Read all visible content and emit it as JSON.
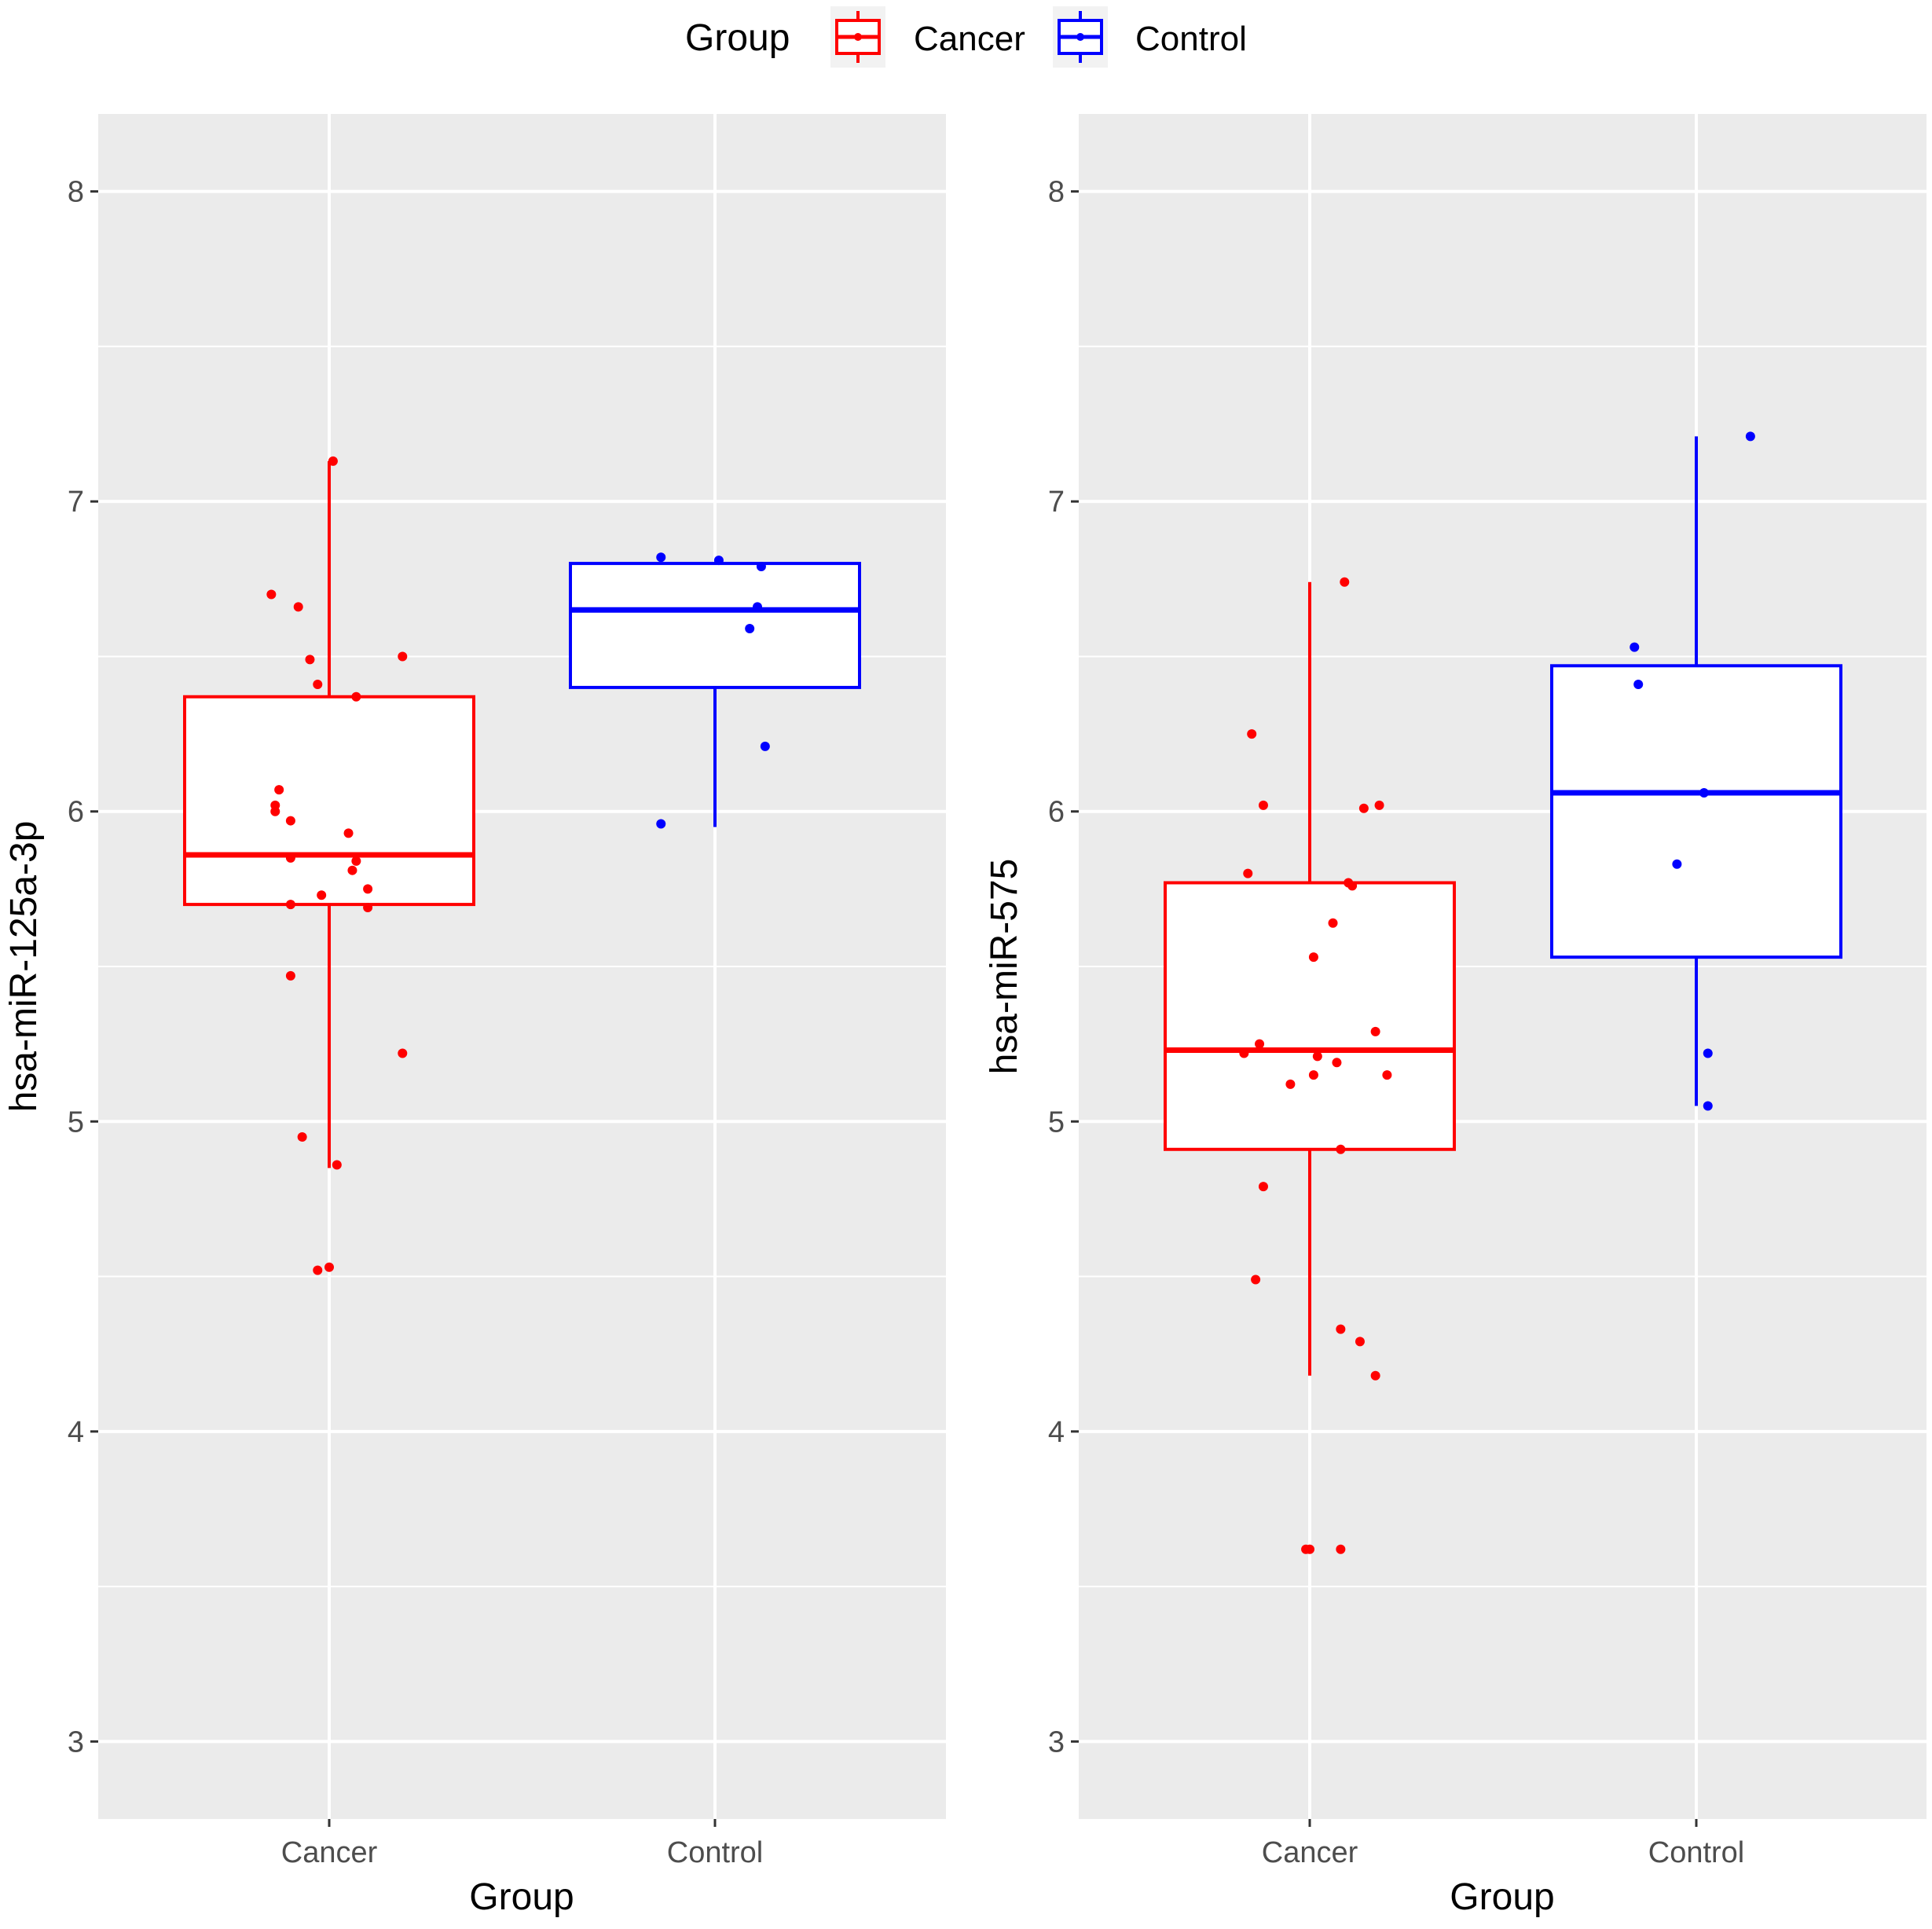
{
  "legend": {
    "title": "Group",
    "entries": [
      {
        "label": "Cancer",
        "color": "#ff0000"
      },
      {
        "label": "Control",
        "color": "#0000ff"
      }
    ]
  },
  "colors": {
    "panel_bg": "#ebebeb",
    "grid": "#ffffff",
    "cancer": "#ff0000",
    "control": "#0000ff",
    "tick_text": "#4d4d4d"
  },
  "chart_data": [
    {
      "type": "boxplot",
      "xlabel": "Group",
      "ylabel": "hsa-miR-125a-3p",
      "ylim": [
        2.75,
        8.25
      ],
      "yticks": [
        3,
        4,
        5,
        6,
        7,
        8
      ],
      "categories": [
        "Cancer",
        "Control"
      ],
      "boxes": [
        {
          "group": "Cancer",
          "whisker_low": 4.85,
          "q1": 5.7,
          "median": 5.86,
          "q3": 6.37,
          "whisker_high": 7.13,
          "points": [
            {
              "x": -0.15,
              "y": 6.7
            },
            {
              "x": -0.08,
              "y": 6.66
            },
            {
              "x": -0.05,
              "y": 6.49
            },
            {
              "x": -0.03,
              "y": 6.41
            },
            {
              "x": 0.07,
              "y": 6.37
            },
            {
              "x": 0.19,
              "y": 6.5
            },
            {
              "x": 0.01,
              "y": 7.13
            },
            {
              "x": -0.13,
              "y": 6.07
            },
            {
              "x": -0.14,
              "y": 6.02
            },
            {
              "x": -0.14,
              "y": 6.0
            },
            {
              "x": -0.1,
              "y": 5.97
            },
            {
              "x": 0.05,
              "y": 5.93
            },
            {
              "x": -0.1,
              "y": 5.85
            },
            {
              "x": 0.07,
              "y": 5.84
            },
            {
              "x": 0.06,
              "y": 5.81
            },
            {
              "x": 0.1,
              "y": 5.75
            },
            {
              "x": -0.02,
              "y": 5.73
            },
            {
              "x": -0.1,
              "y": 5.7
            },
            {
              "x": 0.1,
              "y": 5.69
            },
            {
              "x": -0.1,
              "y": 5.47
            },
            {
              "x": 0.19,
              "y": 5.22
            },
            {
              "x": -0.07,
              "y": 4.95
            },
            {
              "x": 0.02,
              "y": 4.86
            },
            {
              "x": -0.03,
              "y": 4.52
            },
            {
              "x": 0.0,
              "y": 4.53
            }
          ]
        },
        {
          "group": "Control",
          "whisker_low": 5.95,
          "q1": 6.4,
          "median": 6.65,
          "q3": 6.8,
          "whisker_high": 6.8,
          "points": [
            {
              "x": -0.14,
              "y": 6.82
            },
            {
              "x": 0.01,
              "y": 6.81
            },
            {
              "x": 0.12,
              "y": 6.79
            },
            {
              "x": 0.11,
              "y": 6.66
            },
            {
              "x": 0.09,
              "y": 6.59
            },
            {
              "x": 0.13,
              "y": 6.21
            },
            {
              "x": -0.14,
              "y": 5.96
            }
          ]
        }
      ]
    },
    {
      "type": "boxplot",
      "xlabel": "Group",
      "ylabel": "hsa-miR-575",
      "ylim": [
        2.75,
        8.25
      ],
      "yticks": [
        3,
        4,
        5,
        6,
        7,
        8
      ],
      "categories": [
        "Cancer",
        "Control"
      ],
      "boxes": [
        {
          "group": "Cancer",
          "whisker_low": 4.18,
          "q1": 4.91,
          "median": 5.23,
          "q3": 5.77,
          "whisker_high": 6.74,
          "points": [
            {
              "x": 0.09,
              "y": 6.74
            },
            {
              "x": -0.15,
              "y": 6.25
            },
            {
              "x": -0.12,
              "y": 6.02
            },
            {
              "x": 0.14,
              "y": 6.01
            },
            {
              "x": 0.18,
              "y": 6.02
            },
            {
              "x": -0.16,
              "y": 5.8
            },
            {
              "x": 0.1,
              "y": 5.77
            },
            {
              "x": 0.11,
              "y": 5.76
            },
            {
              "x": 0.06,
              "y": 5.64
            },
            {
              "x": 0.01,
              "y": 5.53
            },
            {
              "x": 0.17,
              "y": 5.29
            },
            {
              "x": -0.13,
              "y": 5.25
            },
            {
              "x": -0.17,
              "y": 5.22
            },
            {
              "x": 0.02,
              "y": 5.21
            },
            {
              "x": 0.07,
              "y": 5.19
            },
            {
              "x": 0.2,
              "y": 5.15
            },
            {
              "x": 0.01,
              "y": 5.15
            },
            {
              "x": -0.05,
              "y": 5.12
            },
            {
              "x": 0.08,
              "y": 4.91
            },
            {
              "x": -0.12,
              "y": 4.79
            },
            {
              "x": -0.14,
              "y": 4.49
            },
            {
              "x": 0.08,
              "y": 4.33
            },
            {
              "x": 0.13,
              "y": 4.29
            },
            {
              "x": 0.17,
              "y": 4.18
            },
            {
              "x": 0.0,
              "y": 3.62
            },
            {
              "x": -0.01,
              "y": 3.62
            },
            {
              "x": 0.08,
              "y": 3.62
            }
          ]
        },
        {
          "group": "Control",
          "whisker_low": 5.05,
          "q1": 5.53,
          "median": 6.06,
          "q3": 6.47,
          "whisker_high": 7.21,
          "points": [
            {
              "x": 0.14,
              "y": 7.21
            },
            {
              "x": -0.16,
              "y": 6.53
            },
            {
              "x": -0.15,
              "y": 6.41
            },
            {
              "x": 0.02,
              "y": 6.06
            },
            {
              "x": -0.05,
              "y": 5.83
            },
            {
              "x": 0.03,
              "y": 5.22
            },
            {
              "x": 0.03,
              "y": 5.05
            }
          ]
        }
      ]
    }
  ]
}
